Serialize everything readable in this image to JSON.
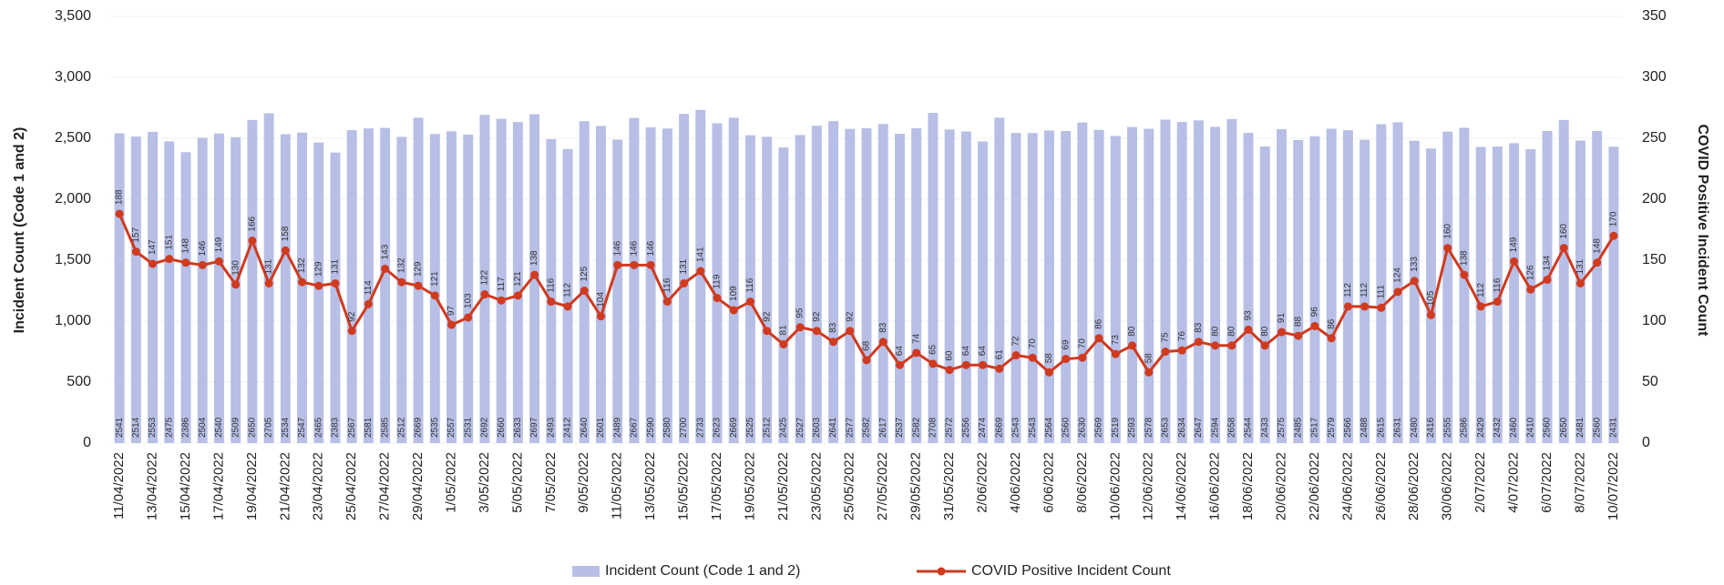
{
  "chart_data": {
    "type": "bar_line",
    "categories": [
      "11/04/2022",
      null,
      "13/04/2022",
      null,
      "15/04/2022",
      null,
      "17/04/2022",
      null,
      "19/04/2022",
      null,
      "21/04/2022",
      null,
      "23/04/2022",
      null,
      "25/04/2022",
      null,
      "27/04/2022",
      null,
      "29/04/2022",
      null,
      "1/05/2022",
      null,
      "3/05/2022",
      null,
      "5/05/2022",
      null,
      "7/05/2022",
      null,
      "9/05/2022",
      null,
      "11/05/2022",
      null,
      "13/05/2022",
      null,
      "15/05/2022",
      null,
      "17/05/2022",
      null,
      "19/05/2022",
      null,
      "21/05/2022",
      null,
      "23/05/2022",
      null,
      "25/05/2022",
      null,
      "27/05/2022",
      null,
      "29/05/2022",
      null,
      "31/05/2022",
      null,
      "2/06/2022",
      null,
      "4/06/2022",
      null,
      "6/06/2022",
      null,
      "8/06/2022",
      null,
      "10/06/2022",
      null,
      "12/06/2022",
      null,
      "14/06/2022",
      null,
      "16/06/2022",
      null,
      "18/06/2022",
      null,
      "20/06/2022",
      null,
      "22/06/2022",
      null,
      "24/06/2022",
      null,
      "26/06/2022",
      null,
      "28/06/2022",
      null,
      "30/06/2022",
      null,
      "2/07/2022",
      null,
      "4/07/2022",
      null,
      "6/07/2022",
      null,
      "8/07/2022",
      null,
      "10/07/2022"
    ],
    "series": [
      {
        "name": "Incident Count (Code 1 and 2)",
        "type": "bar",
        "axis": "y",
        "color": "#b7bfe6",
        "values": [
          2541,
          2514,
          2553,
          2475,
          2386,
          2504,
          2540,
          2509,
          2650,
          2705,
          2534,
          2547,
          2465,
          2383,
          2567,
          2581,
          2585,
          2512,
          2669,
          2535,
          2557,
          2531,
          2692,
          2660,
          2633,
          2697,
          2493,
          2412,
          2640,
          2601,
          2489,
          2667,
          2590,
          2580,
          2700,
          2733,
          2623,
          2669,
          2525,
          2512,
          2425,
          2527,
          2603,
          2641,
          2577,
          2582,
          2617,
          2537,
          2582,
          2708,
          2572,
          2556,
          2474,
          2669,
          2543,
          2543,
          2564,
          2560,
          2630,
          2569,
          2519,
          2593,
          2578,
          2653,
          2634,
          2647,
          2594,
          2658,
          2544,
          2433,
          2575,
          2485,
          2517,
          2579,
          2566,
          2488,
          2615,
          2631,
          2480,
          2416,
          2555,
          2586,
          2429,
          2432,
          2460,
          2410,
          2560,
          2650,
          2481,
          2560,
          2431
        ]
      },
      {
        "name": "COVID Positive Incident Count",
        "type": "line",
        "axis": "y2",
        "color": "#d03a1f",
        "values": [
          188,
          157,
          147,
          151,
          148,
          146,
          149,
          130,
          166,
          131,
          158,
          132,
          129,
          131,
          92,
          114,
          143,
          132,
          129,
          121,
          97,
          103,
          122,
          117,
          121,
          138,
          116,
          112,
          125,
          104,
          146,
          146,
          146,
          116,
          131,
          141,
          119,
          109,
          116,
          92,
          81,
          95,
          92,
          83,
          92,
          68,
          83,
          64,
          74,
          65,
          60,
          64,
          64,
          61,
          72,
          70,
          58,
          69,
          70,
          86,
          73,
          80,
          58,
          75,
          76,
          83,
          80,
          80,
          93,
          80,
          91,
          88,
          96,
          86,
          112,
          112,
          111,
          124,
          133,
          105,
          160,
          138,
          112,
          116,
          149,
          126,
          134,
          160,
          131,
          148,
          170
        ]
      }
    ],
    "ylabel": "Incident Count (Code 1 and 2)",
    "y2label": "COVID Positive Incident Count",
    "ylim": [
      0,
      3500
    ],
    "yticks": [
      0,
      500,
      {
        "value": 1000,
        "label": "1,000"
      },
      {
        "value": 1500,
        "label": "1,500"
      },
      {
        "value": 2000,
        "label": "2,000"
      },
      {
        "value": 2500,
        "label": "2,500"
      },
      {
        "value": 3000,
        "label": "3,000"
      },
      {
        "value": 3500,
        "label": "3,500"
      }
    ],
    "y2lim": [
      0,
      350
    ],
    "y2ticks": [
      0,
      50,
      100,
      150,
      200,
      250,
      300,
      350
    ],
    "grid": true,
    "legend": "bottom"
  }
}
